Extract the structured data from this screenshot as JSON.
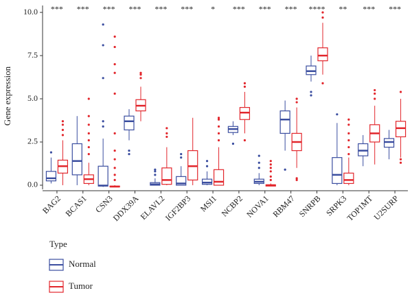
{
  "chart_data": {
    "type": "box",
    "y_label": "Gene expression",
    "legend_title": "Type",
    "categories": [
      "BAG2",
      "BCAS1",
      "CSN3",
      "DDX39A",
      "ELAVL2",
      "IGF2BP3",
      "MSI1",
      "NCBP2",
      "NOVA1",
      "RBM47",
      "SNRPB",
      "SRPK3",
      "TOP1MT",
      "U2SURP"
    ],
    "significance": [
      "***",
      "***",
      "***",
      "***",
      "***",
      "***",
      "*",
      "***",
      "***",
      "***",
      "****",
      "**",
      "***",
      "***"
    ],
    "ylim": [
      -0.24,
      10.4
    ],
    "yticks": [
      {
        "value": 0,
        "label": "0.0"
      },
      {
        "value": 2.5,
        "label": "2.5"
      },
      {
        "value": 5,
        "label": "5.0"
      },
      {
        "value": 7.5,
        "label": "7.5"
      },
      {
        "value": 10,
        "label": "10.0"
      }
    ],
    "series": [
      {
        "name": "Normal",
        "color": "#3a4d9f",
        "min": [
          0.1,
          0.0,
          -0.1,
          2.6,
          0.0,
          0.0,
          0.0,
          2.9,
          0.0,
          2.0,
          6.0,
          0.0,
          1.1,
          1.5
        ],
        "q1": [
          0.25,
          0.6,
          -0.05,
          3.2,
          0.0,
          0.0,
          0.05,
          3.05,
          0.1,
          3.0,
          6.4,
          0.1,
          1.7,
          2.2
        ],
        "median": [
          0.4,
          1.4,
          -0.02,
          3.7,
          0.05,
          0.1,
          0.15,
          3.25,
          0.2,
          3.8,
          6.6,
          0.6,
          2.0,
          2.5
        ],
        "q3": [
          0.8,
          2.4,
          1.1,
          4.0,
          0.15,
          0.5,
          0.35,
          3.4,
          0.35,
          4.3,
          6.9,
          1.6,
          2.4,
          2.7
        ],
        "max": [
          1.6,
          4.0,
          2.7,
          4.4,
          0.4,
          1.1,
          0.8,
          3.7,
          0.7,
          4.9,
          7.5,
          3.6,
          2.9,
          3.2
        ],
        "outliers": [
          [
            1.9
          ],
          [],
          [
            3.4,
            3.7,
            6.2,
            8.1,
            9.3
          ],
          [
            1.8,
            2.0
          ],
          [
            0.6,
            0.8,
            0.9
          ],
          [
            1.6,
            1.8
          ],
          [
            1.1,
            1.4
          ],
          [
            2.4
          ],
          [
            1.0,
            1.3,
            1.7
          ],
          [
            0.9
          ],
          [
            5.2,
            5.4
          ],
          [
            4.1
          ],
          [],
          []
        ]
      },
      {
        "name": "Tumor",
        "color": "#e2252b",
        "min": [
          0.0,
          0.0,
          -0.1,
          3.7,
          0.0,
          0.0,
          0.0,
          3.0,
          -0.05,
          1.0,
          6.4,
          0.0,
          1.2,
          1.6
        ],
        "q1": [
          0.7,
          0.1,
          -0.1,
          4.3,
          0.05,
          0.3,
          0.0,
          3.8,
          -0.05,
          2.0,
          7.2,
          0.1,
          2.5,
          2.8
        ],
        "median": [
          1.1,
          0.35,
          -0.08,
          4.6,
          0.3,
          1.1,
          0.2,
          4.2,
          0.0,
          2.5,
          7.5,
          0.3,
          3.0,
          3.3
        ],
        "q3": [
          1.45,
          0.6,
          -0.05,
          4.95,
          1.0,
          2.0,
          0.9,
          4.5,
          0.02,
          3.0,
          7.95,
          0.7,
          3.5,
          3.7
        ],
        "max": [
          2.6,
          1.3,
          0.0,
          5.7,
          2.2,
          3.9,
          2.2,
          5.4,
          0.1,
          4.5,
          9.4,
          1.6,
          4.6,
          5.0
        ],
        "outliers": [
          [
            2.9,
            3.2,
            3.5,
            3.7
          ],
          [
            1.8,
            2.2,
            2.6,
            3.0,
            3.5,
            4.0,
            5.0
          ],
          [
            0.3,
            0.6,
            1.0,
            1.5,
            2.0,
            3.0,
            5.3,
            6.5,
            7.0,
            8.0,
            8.6
          ],
          [
            6.2,
            6.4,
            6.5
          ],
          [
            2.8,
            3.0,
            3.3
          ],
          [],
          [
            2.6,
            3.0,
            3.4,
            3.8,
            3.9
          ],
          [
            2.6,
            5.7,
            5.9
          ],
          [
            0.3,
            0.5,
            0.8,
            1.0,
            1.2,
            1.4
          ],
          [
            0.3,
            0.4,
            4.8,
            5.0
          ],
          [
            5.9,
            9.7,
            10.0
          ],
          [
            1.8,
            2.2,
            2.6,
            3.0,
            3.5,
            3.8
          ],
          [
            5.0,
            5.3,
            5.5
          ],
          [
            1.3,
            1.5,
            5.4
          ]
        ]
      }
    ]
  }
}
